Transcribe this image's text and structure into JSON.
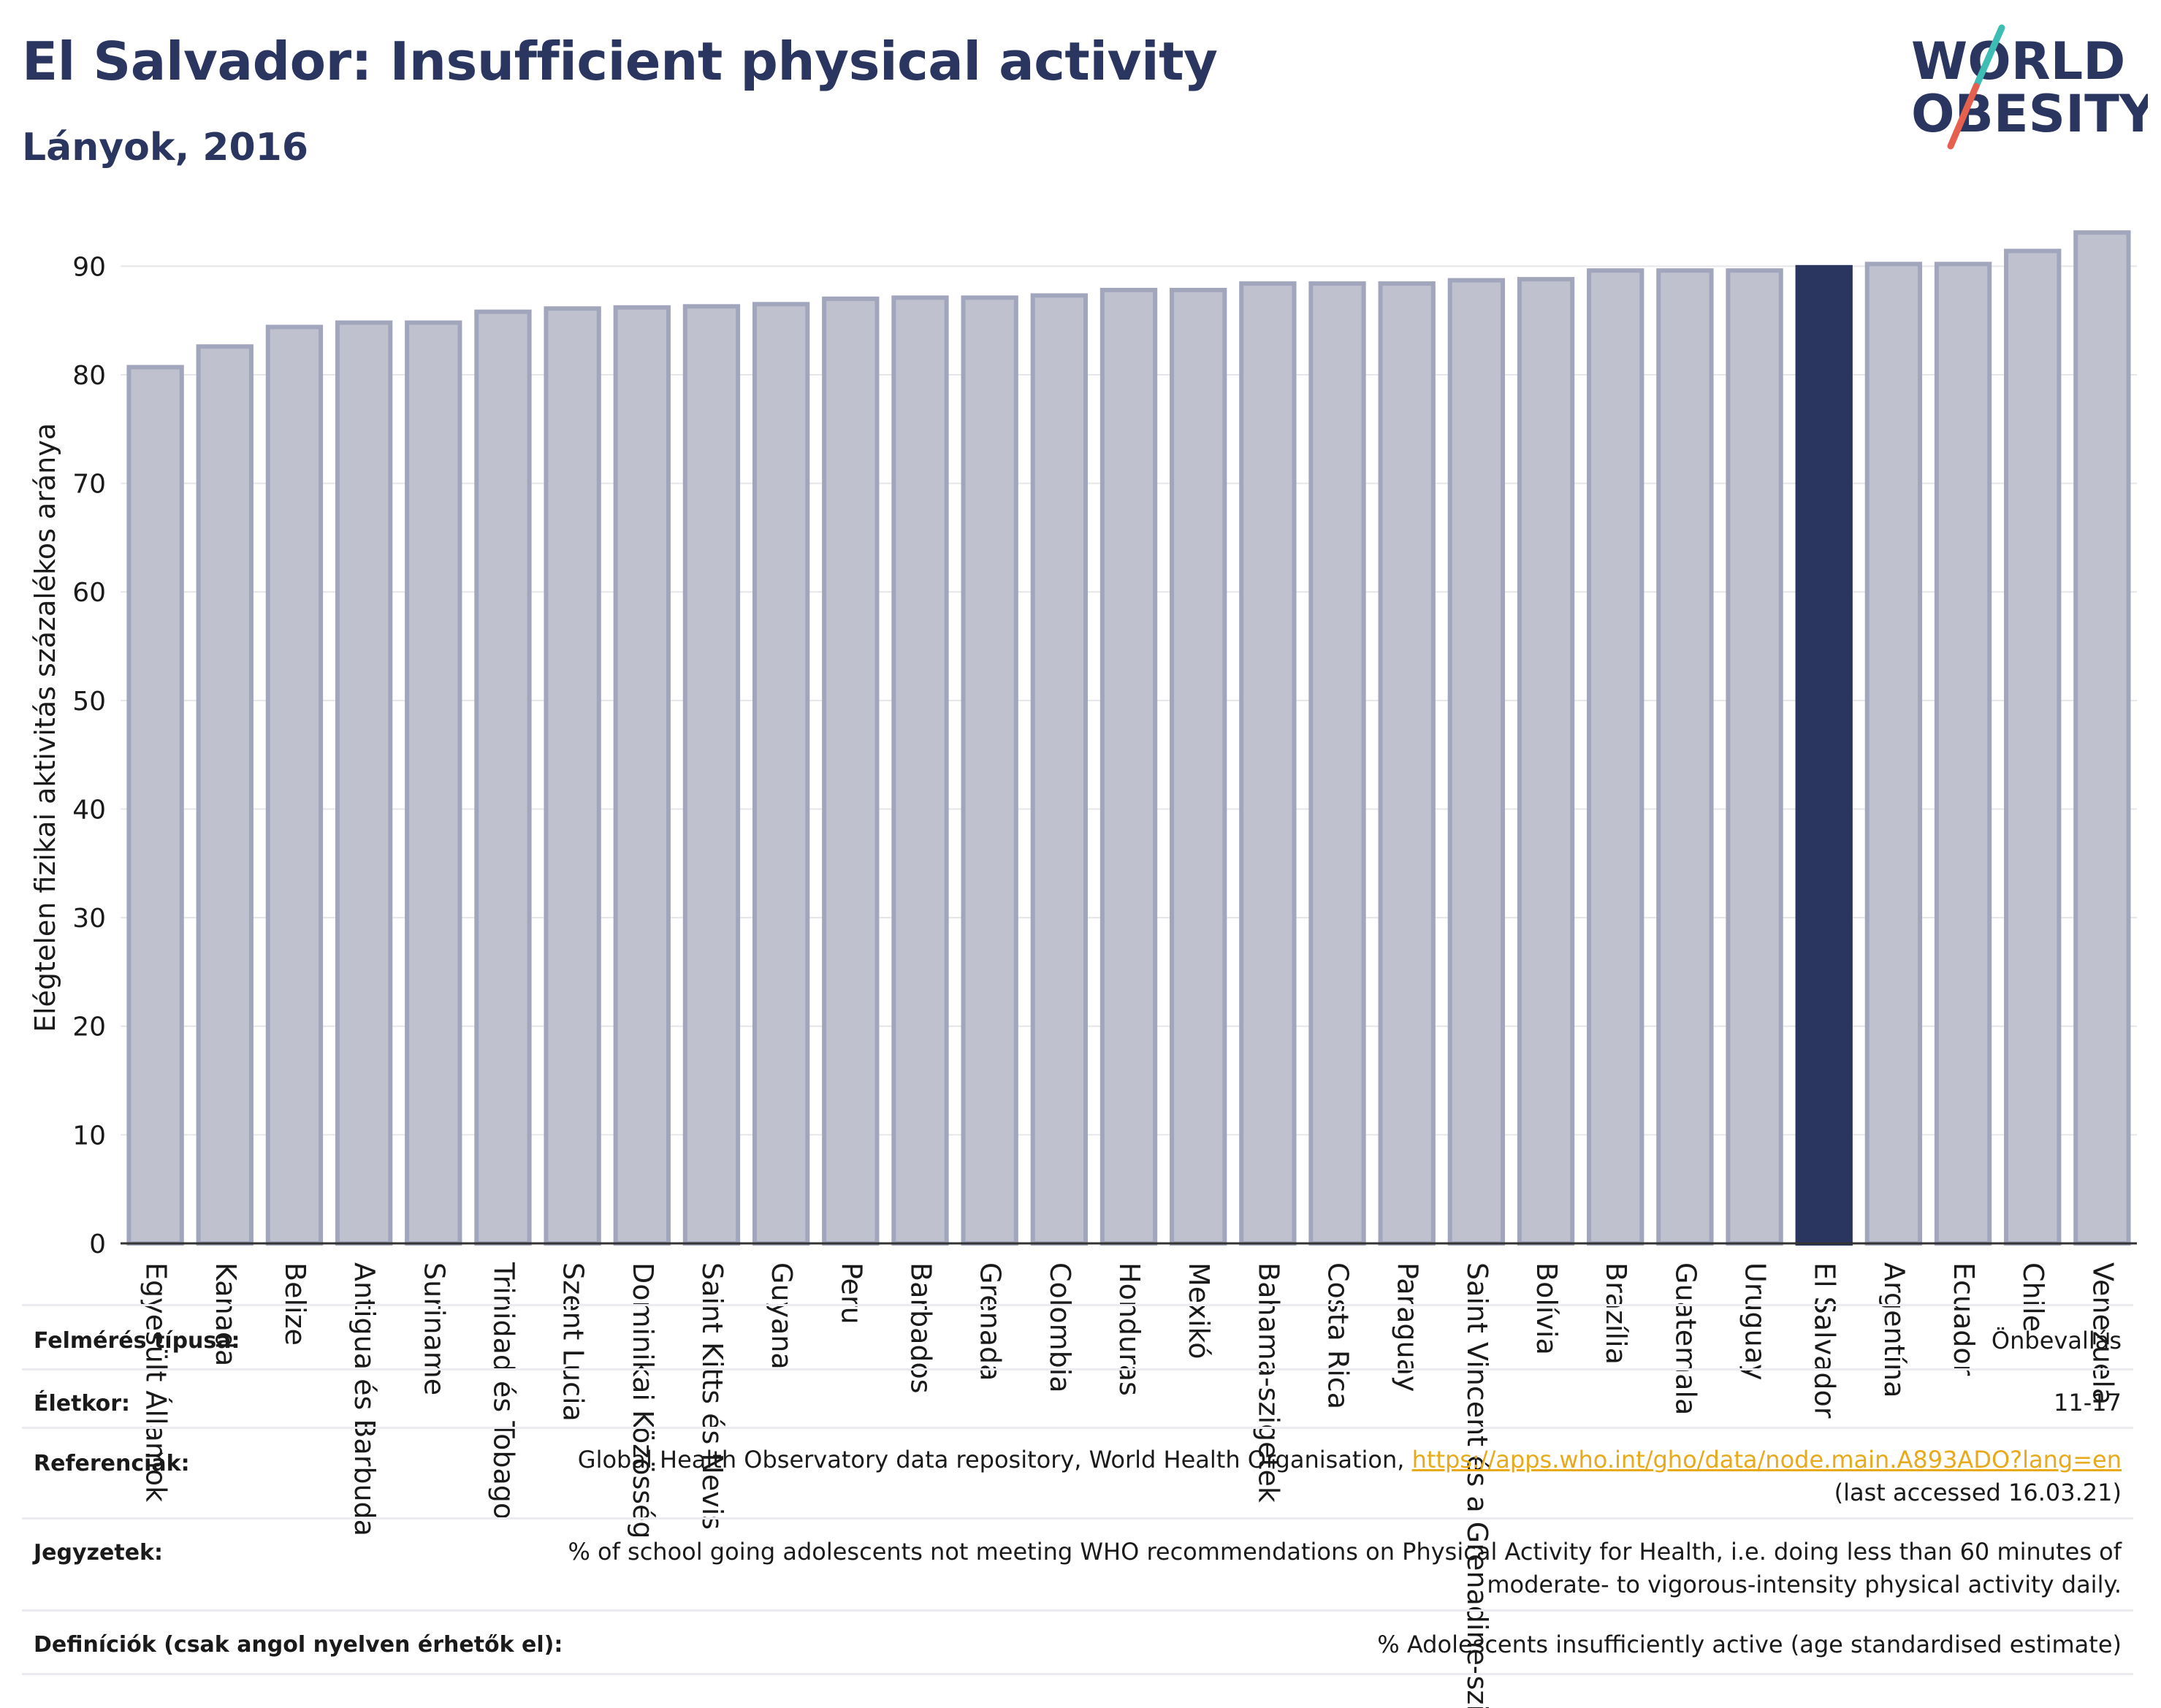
{
  "header": {
    "title": "El Salvador: Insufficient physical activity",
    "subtitle": "Lányok, 2016"
  },
  "logo": {
    "line1": "WORLD",
    "line2": "OBESITY",
    "slash_colors": [
      "#3dbdb4",
      "#e5604e"
    ]
  },
  "colors": {
    "highlight_bar": "#2a3560",
    "other_bar": "#bfc1cf",
    "bar_border": "#a2a6bd",
    "title": "#2a3560",
    "link": "#e8a91a"
  },
  "chart_data": {
    "type": "bar",
    "title": "El Salvador: Insufficient physical activity",
    "subtitle": "Lányok, 2016",
    "ylabel": "Elégtelen fizikai aktivitás százalékos aránya",
    "xlabel": "",
    "ylim": [
      0,
      95
    ],
    "yticks": [
      0,
      10,
      20,
      30,
      40,
      50,
      60,
      70,
      80,
      90
    ],
    "grid": true,
    "highlight": "El Salvador",
    "categories": [
      "Egyesült Államok",
      "Kanada",
      "Belize",
      "Antigua és Barbuda",
      "Suriname",
      "Trinidad és Tobago",
      "Szent Lucia",
      "Dominikai Közösség",
      "Saint Kitts és Nevis",
      "Guyana",
      "Peru",
      "Barbados",
      "Grenada",
      "Colombia",
      "Honduras",
      "Mexikó",
      "Bahama-szigetek",
      "Costa Rica",
      "Paraguay",
      "Saint Vincent és a Grenadine-szigetek",
      "Bolívia",
      "Brazília",
      "Guatemala",
      "Uruguay",
      "El Salvador",
      "Argentína",
      "Ecuador",
      "Chile",
      "Venezuela"
    ],
    "values": [
      80.7,
      82.6,
      84.4,
      84.8,
      84.8,
      85.8,
      86.1,
      86.2,
      86.3,
      86.5,
      87.0,
      87.1,
      87.1,
      87.3,
      87.8,
      87.8,
      88.4,
      88.4,
      88.4,
      88.7,
      88.8,
      89.6,
      89.6,
      89.6,
      89.9,
      90.2,
      90.2,
      91.4,
      93.1
    ]
  },
  "info": {
    "survey_label": "Felmérés típusa:",
    "survey_value": "Önbevallás",
    "age_label": "Életkor:",
    "age_value": "11-17",
    "ref_label": "Referenciák:",
    "ref_text": "Global Health Observatory data repository, World Health Organisation, ",
    "ref_link": "https://apps.who.int/gho/data/node.main.A893ADO?lang=en",
    "ref_access": "(last accessed 16.03.21)",
    "notes_label": "Jegyzetek:",
    "notes_line1": "% of school going adolescents not meeting WHO recommendations on Physical Activity for Health, i.e. doing less than 60 minutes of",
    "notes_line2": "moderate- to vigorous-intensity physical activity daily.",
    "def_label": "Definíciók (csak angol nyelven érhetők el):",
    "def_value": "% Adolescents insufficiently active (age standardised estimate)"
  }
}
